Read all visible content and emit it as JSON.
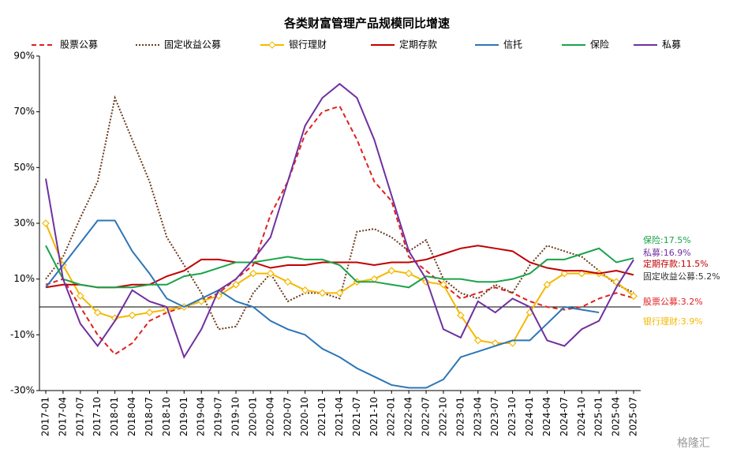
{
  "chart_data": {
    "type": "line",
    "title": "各类财富管理产品规模同比增速",
    "categories": [
      "2017-01",
      "2017-04",
      "2017-07",
      "2017-10",
      "2018-01",
      "2018-04",
      "2018-07",
      "2018-10",
      "2019-01",
      "2019-04",
      "2019-07",
      "2019-10",
      "2020-01",
      "2020-04",
      "2020-07",
      "2020-10",
      "2021-01",
      "2021-04",
      "2021-07",
      "2021-10",
      "2022-01",
      "2022-04",
      "2022-07",
      "2022-10",
      "2023-01",
      "2023-04",
      "2023-07",
      "2023-10",
      "2024-01",
      "2024-04",
      "2024-07",
      "2024-10",
      "2025-01",
      "2025-04",
      "2025-07"
    ],
    "series": [
      {
        "name": "股票公募",
        "color": "#e02020",
        "dash": "dashed",
        "values": [
          8,
          10,
          0,
          -10,
          -17,
          -13,
          -5,
          -2,
          0,
          2,
          5,
          10,
          15,
          33,
          45,
          62,
          70,
          72,
          60,
          45,
          38,
          18,
          13,
          8,
          3,
          5,
          7,
          5,
          2,
          0,
          -1,
          0,
          3,
          5,
          3.2
        ]
      },
      {
        "name": "固定收益公募",
        "color": "#6b3a1e",
        "dash": "dotted",
        "values": [
          10,
          18,
          32,
          45,
          75,
          60,
          45,
          25,
          15,
          5,
          -8,
          -7,
          5,
          12,
          2,
          5,
          5,
          3,
          27,
          28,
          25,
          20,
          24,
          10,
          5,
          3,
          8,
          5,
          15,
          22,
          20,
          18,
          13,
          8,
          5.2
        ]
      },
      {
        "name": "银行理财",
        "color": "#f5b800",
        "dash": "solid",
        "marker": "diamond",
        "values": [
          30,
          15,
          4,
          -2,
          -4,
          -3,
          -2,
          -1,
          0,
          2,
          4,
          8,
          12,
          12,
          9,
          6,
          5,
          5,
          9,
          10,
          13,
          12,
          9,
          8,
          -3,
          -12,
          -13,
          -13,
          -2,
          8,
          12,
          12,
          12,
          9,
          3.9
        ]
      },
      {
        "name": "定期存款",
        "color": "#c00000",
        "dash": "solid",
        "values": [
          7,
          8,
          8,
          7,
          7,
          8,
          8,
          11,
          13,
          17,
          17,
          16,
          16,
          14,
          15,
          15,
          16,
          16,
          16,
          15,
          16,
          16,
          17,
          19,
          21,
          22,
          21,
          20,
          16,
          14,
          13,
          13,
          12,
          13,
          11.5
        ]
      },
      {
        "name": "信托",
        "color": "#2e75b6",
        "dash": "solid",
        "values": [
          7,
          15,
          23,
          31,
          31,
          20,
          12,
          3,
          0,
          3,
          6,
          2,
          0,
          -5,
          -8,
          -10,
          -15,
          -18,
          -22,
          -25,
          -28,
          -29,
          -29,
          -26,
          -18,
          -16,
          -14,
          -12,
          -12,
          -6,
          0,
          -1,
          -2,
          null,
          null
        ]
      },
      {
        "name": "保险",
        "color": "#1aa34a",
        "dash": "solid",
        "values": [
          22,
          10,
          8,
          7,
          7,
          7,
          8,
          8,
          11,
          12,
          14,
          16,
          16,
          17,
          18,
          17,
          17,
          15,
          9,
          9,
          8,
          7,
          11,
          10,
          10,
          9,
          9,
          10,
          12,
          17,
          17,
          19,
          21,
          16,
          17.5
        ]
      },
      {
        "name": "私募",
        "color": "#7030a0",
        "dash": "solid",
        "values": [
          46,
          10,
          -6,
          -14,
          -5,
          6,
          2,
          0,
          -18,
          -8,
          6,
          10,
          17,
          25,
          45,
          65,
          75,
          80,
          75,
          60,
          40,
          20,
          10,
          -8,
          -11,
          2,
          -2,
          3,
          0,
          -12,
          -14,
          -8,
          -5,
          7,
          16.9
        ]
      }
    ],
    "ylim": [
      -30,
      90
    ],
    "yticks": [
      {
        "value": 90,
        "label": "90%"
      },
      {
        "value": 70,
        "label": "70%"
      },
      {
        "value": 50,
        "label": "50%"
      },
      {
        "value": 30,
        "label": "30%"
      },
      {
        "value": 10,
        "label": "10%"
      },
      {
        "value": -10,
        "label": "-10%"
      },
      {
        "value": -30,
        "label": "-30%"
      }
    ],
    "annotations": [
      {
        "text": "保险:17.5%",
        "color": "#1aa34a"
      },
      {
        "text": "私募:16.9%",
        "color": "#7030a0"
      },
      {
        "text": "定期存款:11.5%",
        "color": "#c00000"
      },
      {
        "text": "固定收益公募:5.2%",
        "color": "#333333"
      },
      {
        "text": "股票公募:3.2%",
        "color": "#e02020"
      },
      {
        "text": "银行理财:3.9%",
        "color": "#f5b800"
      }
    ],
    "watermark": "格隆汇"
  }
}
